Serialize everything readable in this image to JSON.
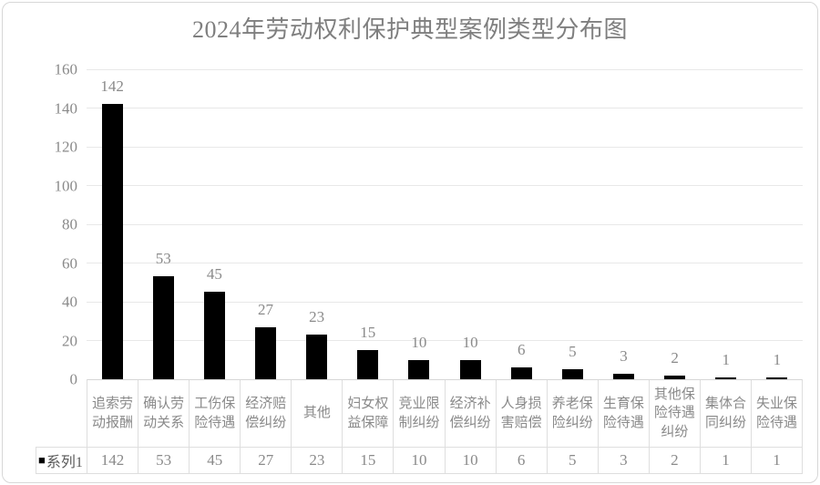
{
  "title": "2024年劳动权利保护典型案例类型分布图",
  "legend": {
    "key": "■",
    "series_label": "系列1"
  },
  "chart_data": {
    "type": "bar",
    "title": "2024年劳动权利保护典型案例类型分布图",
    "series_name": "系列1",
    "categories": [
      "追索劳动报酬",
      "确认劳动关系",
      "工伤保险待遇",
      "经济赔偿纠纷",
      "其他",
      "妇女权益保障",
      "竞业限制纠纷",
      "经济补偿纠纷",
      "人身损害赔偿",
      "养老保险纠纷",
      "生育保险待遇",
      "其他保险待遇纠纷",
      "集体合同纠纷",
      "失业保险待遇"
    ],
    "values": [
      142,
      53,
      45,
      27,
      23,
      15,
      10,
      10,
      6,
      5,
      3,
      2,
      1,
      1
    ],
    "yticks": [
      0,
      20,
      40,
      60,
      80,
      100,
      120,
      140,
      160
    ],
    "ylim": [
      0,
      160
    ],
    "xlabel": "",
    "ylabel": "",
    "grid": true,
    "data_labels": true,
    "legend_position": "data-table-left",
    "bar_color": "#000000"
  },
  "colors": {
    "bar": "#000000",
    "title_text": "#7f7f7f",
    "axis_text": "#8a8a8a",
    "gridline": "#e8e8e8",
    "axis_line": "#d6d6d6",
    "table_border": "#dedede",
    "frame_border": "#d7d7d7",
    "legend_text": "#595959",
    "legend_key": "#000000"
  }
}
